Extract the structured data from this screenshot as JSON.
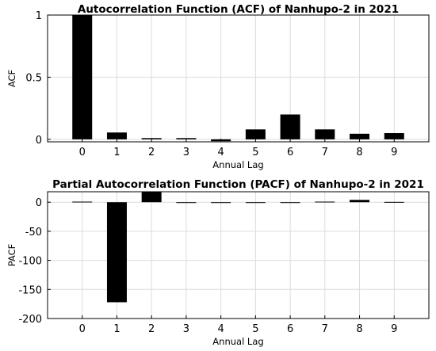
{
  "chart_data": [
    {
      "type": "bar",
      "title": "Autocorrelation Function (ACF) of Nanhupo-2 in 2021",
      "xlabel": "Annual Lag",
      "ylabel": "ACF",
      "categories": [
        "0",
        "1",
        "2",
        "3",
        "4",
        "5",
        "6",
        "7",
        "8",
        "9"
      ],
      "x": [
        0,
        1,
        2,
        3,
        4,
        5,
        6,
        7,
        8,
        9
      ],
      "values": [
        1.0,
        0.055,
        0.01,
        0.01,
        -0.015,
        0.08,
        0.2,
        0.08,
        0.045,
        0.05
      ],
      "xlim": [
        -1,
        10
      ],
      "ylim": [
        -0.02,
        1
      ],
      "yticks": [
        0,
        0.5,
        1
      ],
      "ytick_labels": [
        "0",
        "0.5",
        "1"
      ],
      "grid": true,
      "bar_color": "#000000"
    },
    {
      "type": "bar",
      "title": "Partial Autocorrelation Function (PACF) of Nanhupo-2 in 2021",
      "xlabel": "Annual Lag",
      "ylabel": "PACF",
      "categories": [
        "0",
        "1",
        "2",
        "3",
        "4",
        "5",
        "6",
        "7",
        "8",
        "9"
      ],
      "x": [
        0,
        1,
        2,
        3,
        4,
        5,
        6,
        7,
        8,
        9
      ],
      "values": [
        1,
        -172,
        18,
        -1,
        -1,
        -1,
        -1,
        1,
        4,
        0.5
      ],
      "xlim": [
        -1,
        10
      ],
      "ylim": [
        -200,
        18
      ],
      "yticks": [
        0,
        -50,
        -100,
        -150,
        -200
      ],
      "ytick_labels": [
        "0",
        "-50",
        "-100",
        "-150",
        "-200"
      ],
      "grid": true,
      "bar_color": "#000000"
    }
  ]
}
